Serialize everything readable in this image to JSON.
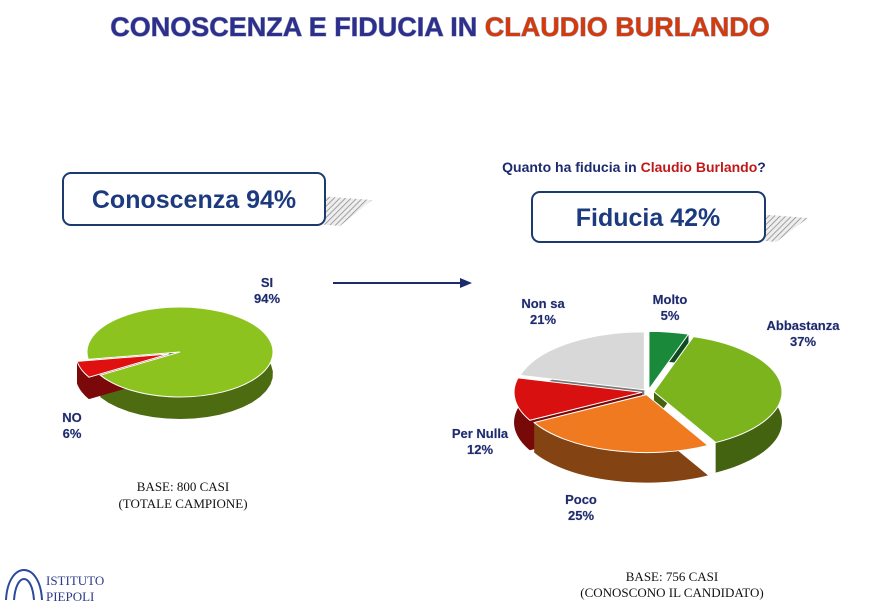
{
  "title": [
    "CONOSCENZA E FIDUCIA IN",
    "CLAUDIO BURLANDO"
  ],
  "question": [
    "Quanto ha fiducia in",
    "Claudio Burlando",
    "?"
  ],
  "logo": [
    "ISTITUTO",
    "PIEPOLI"
  ],
  "chart_data": [
    {
      "type": "pie",
      "title": "Conoscenza 94%",
      "categories": [
        "SI",
        "NO"
      ],
      "values": [
        94,
        6
      ],
      "value_labels": [
        "94%",
        "6%"
      ],
      "colors": [
        "#8cc31e",
        "#e01010"
      ],
      "footnote": [
        "BASE: 800 CASI",
        "(TOTALE CAMPIONE)"
      ]
    },
    {
      "type": "pie",
      "title": "Fiducia 42%",
      "categories": [
        "Molto",
        "Abbastanza",
        "Poco",
        "Per Nulla",
        "Non sa"
      ],
      "values": [
        5,
        37,
        25,
        12,
        21
      ],
      "value_labels": [
        "5%",
        "37%",
        "25%",
        "12%",
        "21%"
      ],
      "colors": [
        "#1a8a3a",
        "#7cb41e",
        "#f07a20",
        "#d81010",
        "#d8d8d8"
      ],
      "footnote": [
        "BASE: 756 CASI",
        "(CONOSCONO IL CANDIDATO)"
      ]
    }
  ]
}
